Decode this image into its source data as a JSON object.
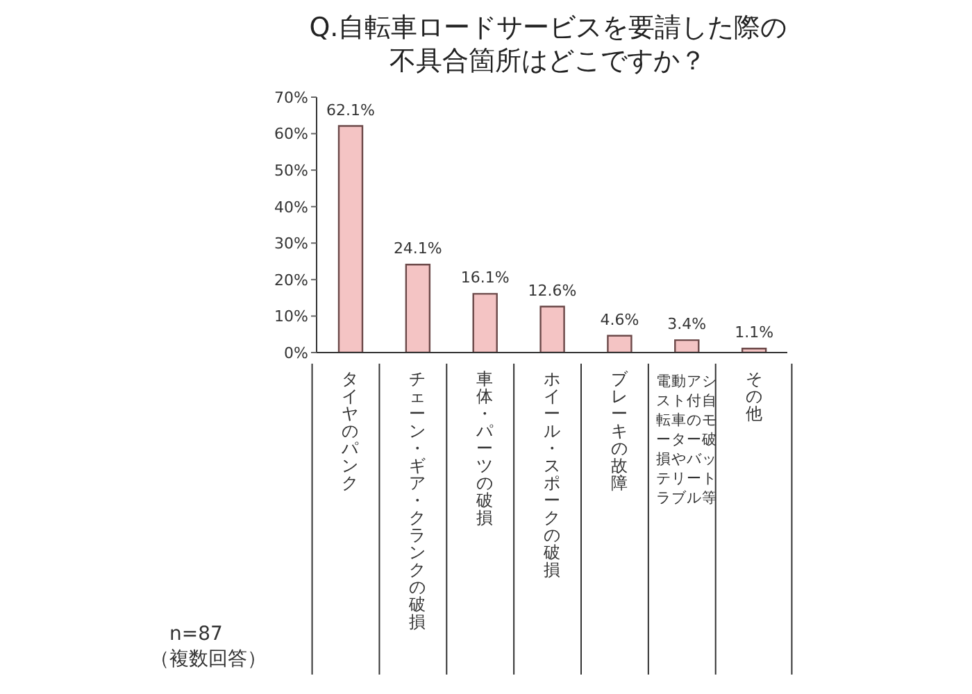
{
  "chart_data": {
    "type": "bar",
    "title": "Q.自転車ロードサービスを要請した際の不具合箇所はどこですか？",
    "categories": [
      "タイヤのパンク",
      "チェーン・ギア・クランクの破損",
      "車体・パーツの破損",
      "ホイール・スポークの破損",
      "ブレーキの故障",
      "電動アシスト付自転車のモーター破損やバッテリートラブル等",
      "その他"
    ],
    "values": [
      62.1,
      24.1,
      16.1,
      12.6,
      4.6,
      3.4,
      1.1
    ],
    "value_labels": [
      "62.1%",
      "24.1%",
      "16.1%",
      "12.6%",
      "4.6%",
      "3.4%",
      "1.1%"
    ],
    "color": "#f4c4c4",
    "ylim": [
      0,
      70
    ],
    "yticks": [
      {
        "value": 0,
        "label": "0%"
      },
      {
        "value": 10,
        "label": "10%"
      },
      {
        "value": 20,
        "label": "20%"
      },
      {
        "value": 30,
        "label": "30%"
      },
      {
        "value": 40,
        "label": "40%"
      },
      {
        "value": 50,
        "label": "50%"
      },
      {
        "value": 60,
        "label": "60%"
      },
      {
        "value": 70,
        "label": "70%"
      }
    ],
    "grid": false,
    "legend": false,
    "annotations": [
      "n=87",
      "（複数回答）"
    ]
  }
}
